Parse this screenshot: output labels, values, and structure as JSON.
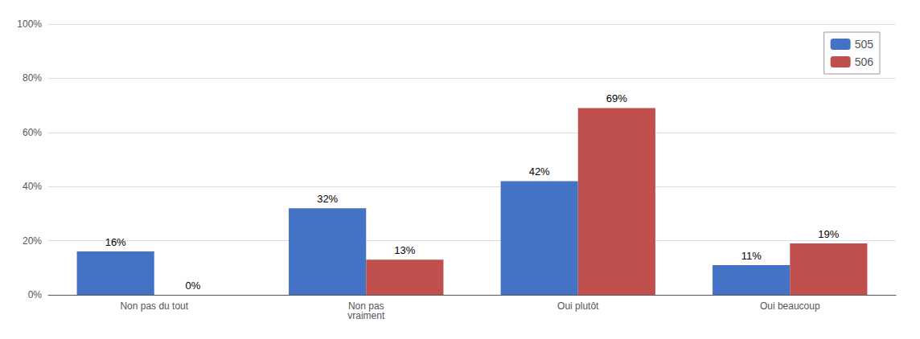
{
  "chart_data": {
    "type": "bar",
    "categories": [
      "Non pas du tout",
      "Non pas\nvraiment",
      "Oui plutôt",
      "Oui beaucoup"
    ],
    "series": [
      {
        "name": "505",
        "color": "#4472C4",
        "values": [
          16,
          32,
          42,
          11
        ],
        "value_labels": [
          "16%",
          "32%",
          "42%",
          "11%"
        ]
      },
      {
        "name": "506",
        "color": "#C0504D",
        "values": [
          0,
          13,
          69,
          19
        ],
        "value_labels": [
          "0%",
          "13%",
          "69%",
          "19%"
        ]
      }
    ],
    "ylim": [
      0,
      100
    ],
    "yticks": [
      {
        "value": 0,
        "label": "0%"
      },
      {
        "value": 20,
        "label": "20%"
      },
      {
        "value": 40,
        "label": "40%"
      },
      {
        "value": 60,
        "label": "60%"
      },
      {
        "value": 80,
        "label": "80%"
      },
      {
        "value": 100,
        "label": "100%"
      }
    ],
    "grid": true,
    "legend": "upper right",
    "data_labels": true
  }
}
